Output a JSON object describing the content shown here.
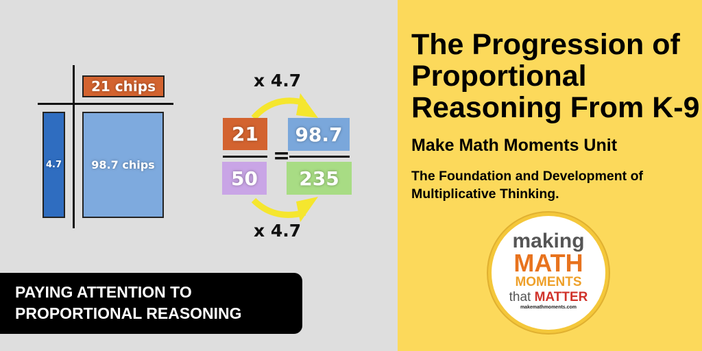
{
  "diagram": {
    "top_label": "21 chips",
    "side_label": "4.7",
    "area_label": "98.7 chips",
    "ratio_left_numerator": "21",
    "ratio_left_denominator": "50",
    "equals": "=",
    "ratio_right_numerator": "98.7",
    "ratio_right_denominator": "235",
    "multiplier_top": "x 4.7",
    "multiplier_bottom": "x 4.7"
  },
  "banner": {
    "line1": "PAYING ATTENTION TO",
    "line2": "PROPORTIONAL REASONING"
  },
  "heading": {
    "title_lines": [
      "The Progression of",
      "Proportional",
      "Reasoning From K-9"
    ],
    "unit": "Make Math Moments Unit",
    "subtitle_lines": [
      "The Foundation and Development of",
      "Multiplicative Thinking."
    ]
  },
  "logo": {
    "making": "making",
    "math": "MATH",
    "moments": "MOMENTS",
    "that": "that",
    "matter": "MATTER",
    "url": "makemathmoments.com"
  },
  "colors": {
    "left_bg": "#dedede",
    "right_bg": "#fcd95b",
    "orange": "#d3632f",
    "dark_blue": "#2f6dc0",
    "light_blue": "#7eaade",
    "purple": "#c9a5e6",
    "green": "#a8dc84",
    "arrow_yellow": "#f5e62e"
  }
}
